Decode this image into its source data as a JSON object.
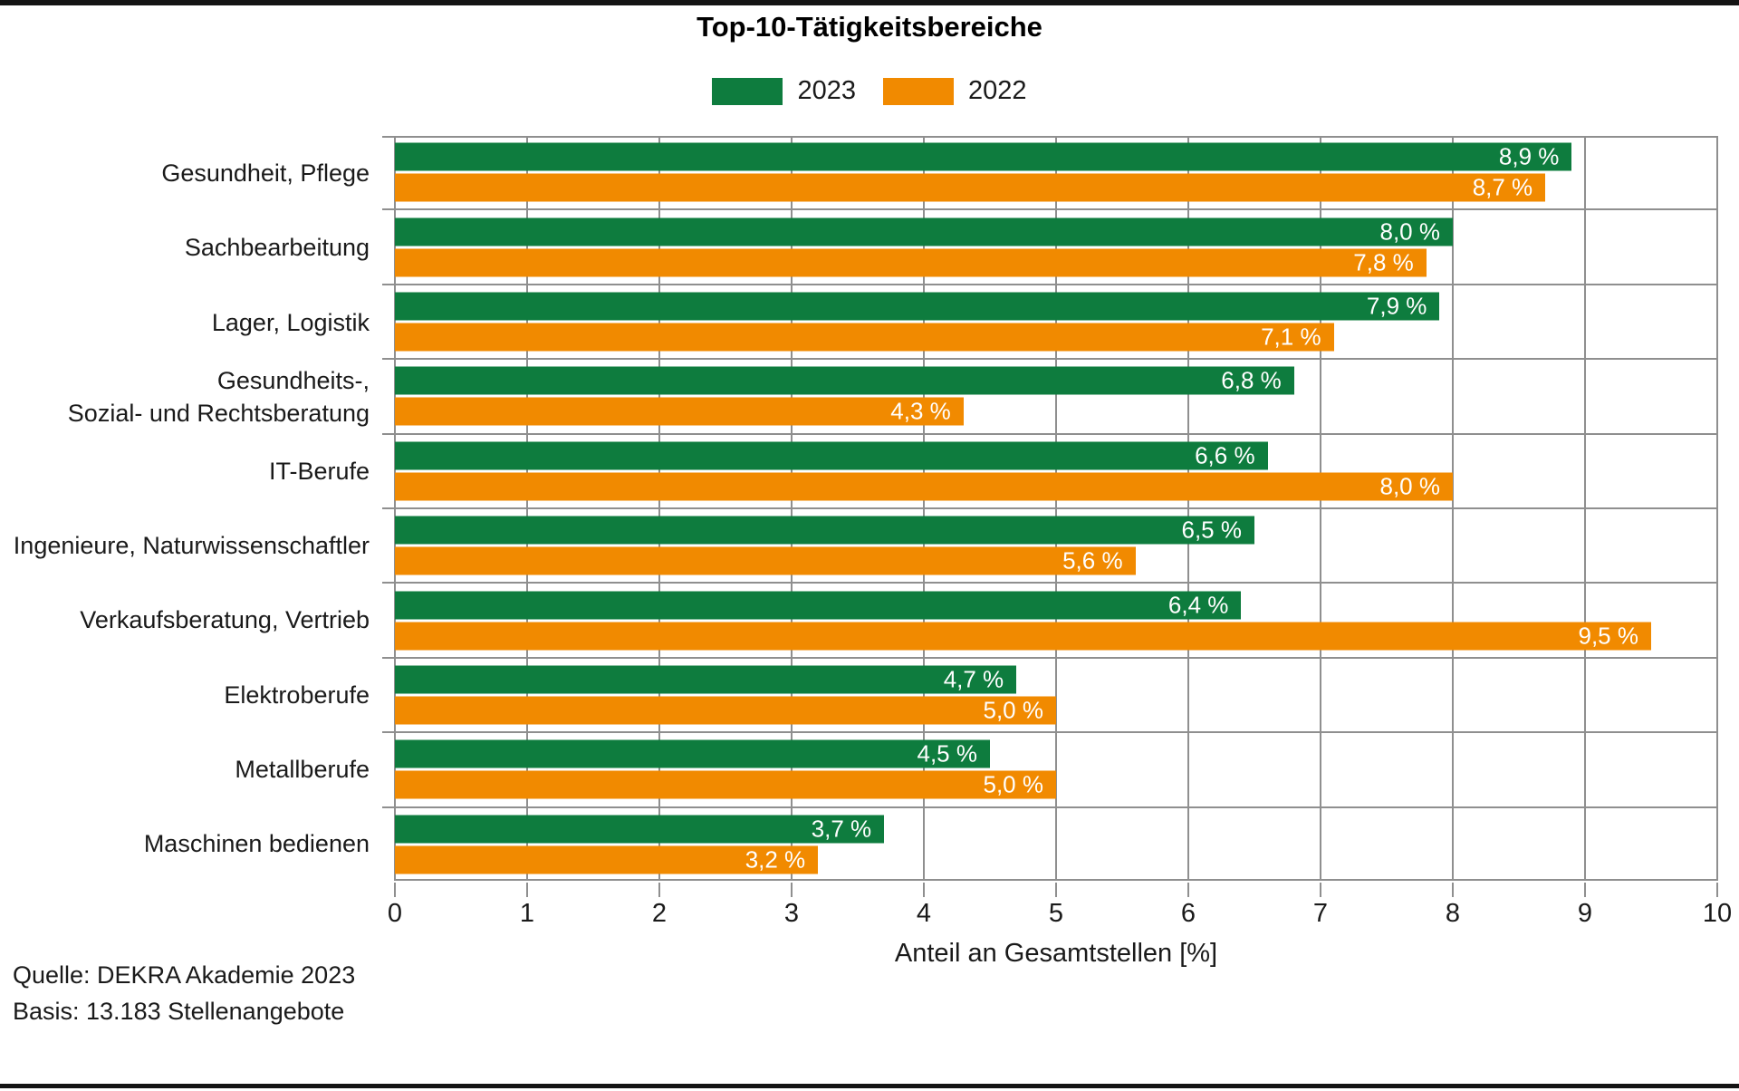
{
  "page": {
    "title": "Top-10-Tätigkeitsbereiche"
  },
  "legend": {
    "items": [
      {
        "label": "2023",
        "color": "#0e7c3e"
      },
      {
        "label": "2022",
        "color": "#f18a00"
      }
    ]
  },
  "axis": {
    "xlabel": "Anteil an Gesamtstellen [%]"
  },
  "footer": {
    "line1": "Quelle: DEKRA Akademie 2023",
    "line2": "Basis: 13.183 Stellenangebote"
  },
  "colors": {
    "green_2023": "#0e7c3e",
    "orange_2022": "#f18a00",
    "grid": "#8f8f8f",
    "bar_label_text": "#ffffff",
    "rule": "#141414"
  },
  "chart_data": {
    "type": "bar",
    "orientation": "horizontal",
    "title": "Top-10-Tätigkeitsbereiche",
    "xlabel": "Anteil an Gesamtstellen [%]",
    "xlim": [
      0,
      10
    ],
    "xticks": [
      0,
      1,
      2,
      3,
      4,
      5,
      6,
      7,
      8,
      9,
      10
    ],
    "grid": true,
    "legend_position": "top-center",
    "categories": [
      [
        "Gesundheit, Pflege"
      ],
      [
        "Sachbearbeitung"
      ],
      [
        "Lager, Logistik"
      ],
      [
        "Gesundheits-,",
        "Sozial- und Rechtsberatung"
      ],
      [
        "IT-Berufe"
      ],
      [
        "Ingenieure, Naturwissenschaftler"
      ],
      [
        "Verkaufsberatung, Vertrieb"
      ],
      [
        "Elektroberufe"
      ],
      [
        "Metallberufe"
      ],
      [
        "Maschinen bedienen"
      ]
    ],
    "series": [
      {
        "name": "2023",
        "color": "#0e7c3e",
        "values": [
          8.9,
          8.0,
          7.9,
          6.8,
          6.6,
          6.5,
          6.4,
          4.7,
          4.5,
          3.7
        ],
        "labels": [
          "8,9 %",
          "8,0 %",
          "7,9 %",
          "6,8 %",
          "6,6 %",
          "6,5 %",
          "6,4 %",
          "4,7 %",
          "4,5 %",
          "3,7 %"
        ]
      },
      {
        "name": "2022",
        "color": "#f18a00",
        "values": [
          8.7,
          7.8,
          7.1,
          4.3,
          8.0,
          5.6,
          9.5,
          5.0,
          5.0,
          3.2
        ],
        "labels": [
          "8,7 %",
          "7,8 %",
          "7,1 %",
          "4,3 %",
          "8,0 %",
          "5,6 %",
          "9,5 %",
          "5,0 %",
          "5,0 %",
          "3,2 %"
        ]
      }
    ]
  }
}
